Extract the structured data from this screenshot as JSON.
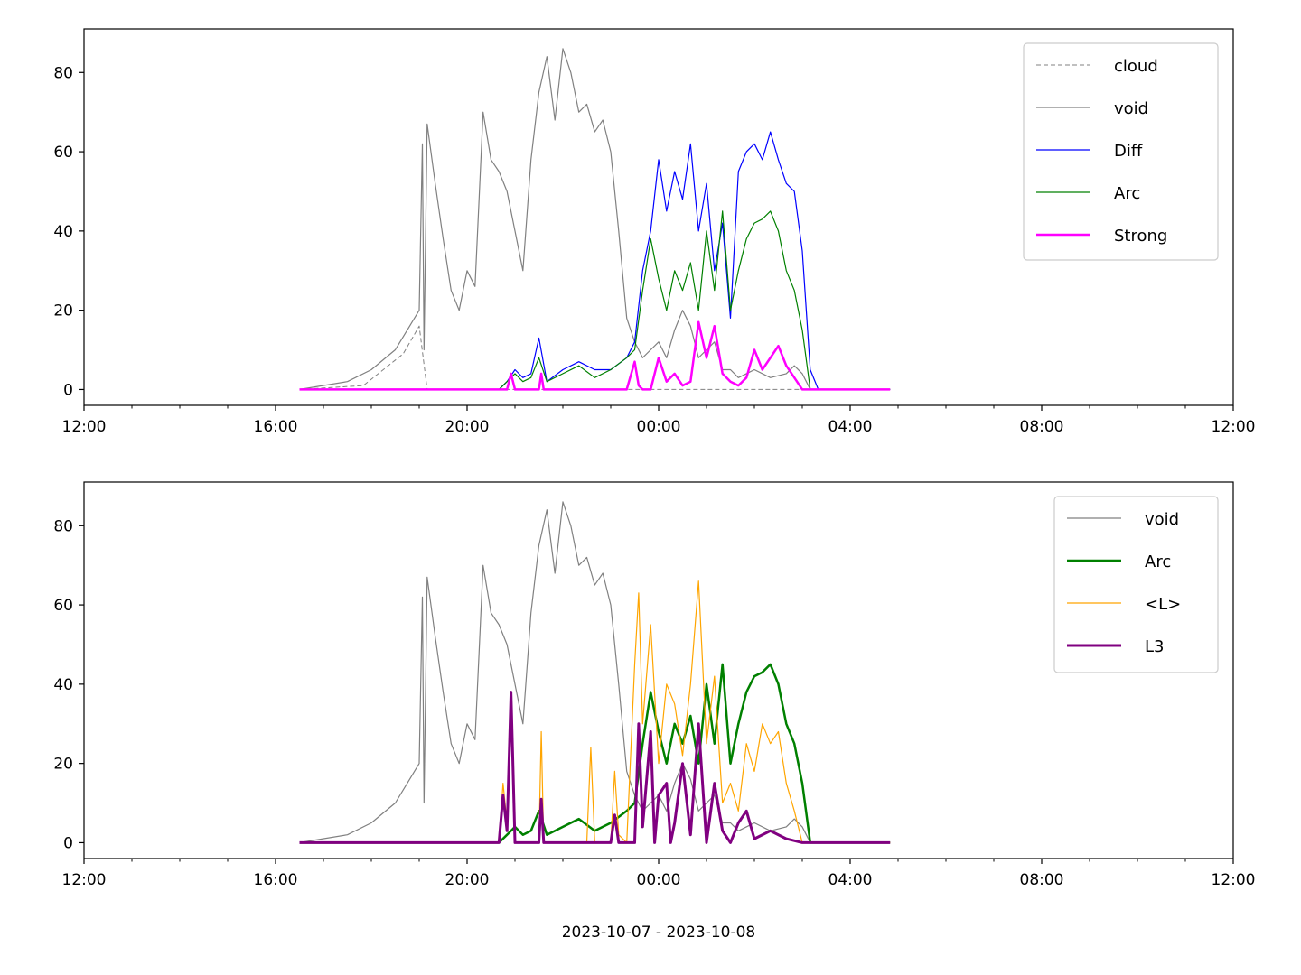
{
  "chart_data": [
    {
      "type": "line",
      "title": "",
      "xlabel": "",
      "ylabel": "",
      "x_axis_kind": "datetime",
      "xlim": [
        "2023-10-07 12:00",
        "2023-10-08 12:00"
      ],
      "ylim": [
        -4,
        91
      ],
      "x_tick_labels": [
        "12:00",
        "16:00",
        "20:00",
        "00:00",
        "04:00",
        "08:00",
        "12:00"
      ],
      "y_tick_labels": [
        "0",
        "20",
        "40",
        "60",
        "80"
      ],
      "y_ticks": [
        0,
        20,
        40,
        60,
        80
      ],
      "grid": false,
      "legend_position": "upper right",
      "series": [
        {
          "name": "cloud",
          "color": "#808080",
          "style": "dashed",
          "width": 1,
          "x": [
            "2023-10-07 16:30",
            "2023-10-07 17:50",
            "2023-10-07 18:40",
            "2023-10-07 19:00",
            "2023-10-07 19:10",
            "2023-10-07 20:00",
            "2023-10-08 03:00",
            "2023-10-08 04:50"
          ],
          "y": [
            0,
            1,
            9,
            16,
            0,
            0,
            0,
            0
          ]
        },
        {
          "name": "void",
          "color": "#808080",
          "style": "solid",
          "width": 1.2,
          "x": [
            "2023-10-07 16:30",
            "2023-10-07 17:30",
            "2023-10-07 18:00",
            "2023-10-07 18:30",
            "2023-10-07 18:45",
            "2023-10-07 19:00",
            "2023-10-07 19:04",
            "2023-10-07 19:06",
            "2023-10-07 19:10",
            "2023-10-07 19:20",
            "2023-10-07 19:30",
            "2023-10-07 19:40",
            "2023-10-07 19:50",
            "2023-10-07 20:00",
            "2023-10-07 20:10",
            "2023-10-07 20:20",
            "2023-10-07 20:30",
            "2023-10-07 20:40",
            "2023-10-07 20:50",
            "2023-10-07 21:00",
            "2023-10-07 21:10",
            "2023-10-07 21:20",
            "2023-10-07 21:30",
            "2023-10-07 21:40",
            "2023-10-07 21:50",
            "2023-10-07 22:00",
            "2023-10-07 22:10",
            "2023-10-07 22:20",
            "2023-10-07 22:30",
            "2023-10-07 22:40",
            "2023-10-07 22:50",
            "2023-10-07 23:00",
            "2023-10-07 23:10",
            "2023-10-07 23:20",
            "2023-10-07 23:30",
            "2023-10-07 23:40",
            "2023-10-07 23:50",
            "2023-10-08 00:00",
            "2023-10-08 00:10",
            "2023-10-08 00:20",
            "2023-10-08 00:30",
            "2023-10-08 00:40",
            "2023-10-08 00:50",
            "2023-10-08 01:00",
            "2023-10-08 01:10",
            "2023-10-08 01:20",
            "2023-10-08 01:30",
            "2023-10-08 01:40",
            "2023-10-08 01:50",
            "2023-10-08 02:00",
            "2023-10-08 02:20",
            "2023-10-08 02:40",
            "2023-10-08 02:50",
            "2023-10-08 03:00",
            "2023-10-08 03:10",
            "2023-10-08 03:30",
            "2023-10-08 04:50"
          ],
          "y": [
            0,
            2,
            5,
            10,
            15,
            20,
            62,
            10,
            67,
            52,
            38,
            25,
            20,
            30,
            26,
            70,
            58,
            55,
            50,
            40,
            30,
            58,
            75,
            84,
            68,
            86,
            80,
            70,
            72,
            65,
            68,
            60,
            40,
            18,
            12,
            8,
            10,
            12,
            8,
            15,
            20,
            16,
            8,
            10,
            12,
            5,
            5,
            3,
            4,
            5,
            3,
            4,
            6,
            4,
            0,
            0,
            0
          ]
        },
        {
          "name": "Diff",
          "color": "#0000ff",
          "style": "solid",
          "width": 1.2,
          "x": [
            "2023-10-07 16:30",
            "2023-10-07 20:40",
            "2023-10-07 20:50",
            "2023-10-07 21:00",
            "2023-10-07 21:10",
            "2023-10-07 21:20",
            "2023-10-07 21:30",
            "2023-10-07 21:40",
            "2023-10-07 22:00",
            "2023-10-07 22:20",
            "2023-10-07 22:40",
            "2023-10-07 23:00",
            "2023-10-07 23:20",
            "2023-10-07 23:30",
            "2023-10-07 23:40",
            "2023-10-07 23:50",
            "2023-10-08 00:00",
            "2023-10-08 00:10",
            "2023-10-08 00:20",
            "2023-10-08 00:30",
            "2023-10-08 00:40",
            "2023-10-08 00:50",
            "2023-10-08 01:00",
            "2023-10-08 01:10",
            "2023-10-08 01:20",
            "2023-10-08 01:30",
            "2023-10-08 01:40",
            "2023-10-08 01:50",
            "2023-10-08 02:00",
            "2023-10-08 02:10",
            "2023-10-08 02:20",
            "2023-10-08 02:30",
            "2023-10-08 02:40",
            "2023-10-08 02:50",
            "2023-10-08 03:00",
            "2023-10-08 03:10",
            "2023-10-08 03:20",
            "2023-10-08 04:50"
          ],
          "y": [
            0,
            0,
            2,
            5,
            3,
            4,
            13,
            2,
            5,
            7,
            5,
            5,
            8,
            12,
            30,
            40,
            58,
            45,
            55,
            48,
            62,
            40,
            52,
            30,
            42,
            18,
            55,
            60,
            62,
            58,
            65,
            58,
            52,
            50,
            35,
            5,
            0,
            0
          ]
        },
        {
          "name": "Arc",
          "color": "#008000",
          "style": "solid",
          "width": 1.2,
          "x": [
            "2023-10-07 16:30",
            "2023-10-07 20:40",
            "2023-10-07 20:50",
            "2023-10-07 21:00",
            "2023-10-07 21:10",
            "2023-10-07 21:20",
            "2023-10-07 21:30",
            "2023-10-07 21:40",
            "2023-10-07 22:00",
            "2023-10-07 22:20",
            "2023-10-07 22:40",
            "2023-10-07 23:00",
            "2023-10-07 23:20",
            "2023-10-07 23:30",
            "2023-10-07 23:40",
            "2023-10-07 23:50",
            "2023-10-08 00:00",
            "2023-10-08 00:10",
            "2023-10-08 00:20",
            "2023-10-08 00:30",
            "2023-10-08 00:40",
            "2023-10-08 00:50",
            "2023-10-08 01:00",
            "2023-10-08 01:10",
            "2023-10-08 01:20",
            "2023-10-08 01:30",
            "2023-10-08 01:40",
            "2023-10-08 01:50",
            "2023-10-08 02:00",
            "2023-10-08 02:10",
            "2023-10-08 02:20",
            "2023-10-08 02:30",
            "2023-10-08 02:40",
            "2023-10-08 02:50",
            "2023-10-08 03:00",
            "2023-10-08 03:10",
            "2023-10-08 03:20",
            "2023-10-08 04:50"
          ],
          "y": [
            0,
            0,
            2,
            4,
            2,
            3,
            8,
            2,
            4,
            6,
            3,
            5,
            8,
            10,
            25,
            38,
            28,
            20,
            30,
            25,
            32,
            20,
            40,
            25,
            45,
            20,
            30,
            38,
            42,
            43,
            45,
            40,
            30,
            25,
            15,
            0,
            0,
            0
          ]
        },
        {
          "name": "Strong",
          "color": "#ff00ff",
          "style": "solid",
          "width": 2.5,
          "x": [
            "2023-10-07 16:30",
            "2023-10-07 20:50",
            "2023-10-07 20:55",
            "2023-10-07 21:00",
            "2023-10-07 21:30",
            "2023-10-07 21:33",
            "2023-10-07 21:36",
            "2023-10-07 23:20",
            "2023-10-07 23:30",
            "2023-10-07 23:35",
            "2023-10-07 23:40",
            "2023-10-07 23:50",
            "2023-10-08 00:00",
            "2023-10-08 00:10",
            "2023-10-08 00:20",
            "2023-10-08 00:30",
            "2023-10-08 00:40",
            "2023-10-08 00:50",
            "2023-10-08 01:00",
            "2023-10-08 01:10",
            "2023-10-08 01:20",
            "2023-10-08 01:30",
            "2023-10-08 01:40",
            "2023-10-08 01:50",
            "2023-10-08 02:00",
            "2023-10-08 02:10",
            "2023-10-08 02:20",
            "2023-10-08 02:30",
            "2023-10-08 02:40",
            "2023-10-08 02:50",
            "2023-10-08 03:00",
            "2023-10-08 04:50"
          ],
          "y": [
            0,
            0,
            4,
            0,
            0,
            4,
            0,
            0,
            7,
            1,
            0,
            0,
            8,
            2,
            4,
            1,
            2,
            17,
            8,
            16,
            4,
            2,
            1,
            3,
            10,
            5,
            8,
            11,
            6,
            3,
            0,
            0
          ]
        }
      ]
    },
    {
      "type": "line",
      "title": "",
      "xlabel": "2023-10-07 - 2023-10-08",
      "ylabel": "",
      "x_axis_kind": "datetime",
      "xlim": [
        "2023-10-07 12:00",
        "2023-10-08 12:00"
      ],
      "ylim": [
        -4,
        91
      ],
      "x_tick_labels": [
        "12:00",
        "16:00",
        "20:00",
        "00:00",
        "04:00",
        "08:00",
        "12:00"
      ],
      "y_tick_labels": [
        "0",
        "20",
        "40",
        "60",
        "80"
      ],
      "y_ticks": [
        0,
        20,
        40,
        60,
        80
      ],
      "grid": false,
      "legend_position": "upper right",
      "series": [
        {
          "name": "void",
          "color": "#808080",
          "style": "solid",
          "width": 1.2,
          "x": [
            "2023-10-07 16:30",
            "2023-10-07 17:30",
            "2023-10-07 18:00",
            "2023-10-07 18:30",
            "2023-10-07 18:45",
            "2023-10-07 19:00",
            "2023-10-07 19:04",
            "2023-10-07 19:06",
            "2023-10-07 19:10",
            "2023-10-07 19:20",
            "2023-10-07 19:30",
            "2023-10-07 19:40",
            "2023-10-07 19:50",
            "2023-10-07 20:00",
            "2023-10-07 20:10",
            "2023-10-07 20:20",
            "2023-10-07 20:30",
            "2023-10-07 20:40",
            "2023-10-07 20:50",
            "2023-10-07 21:00",
            "2023-10-07 21:10",
            "2023-10-07 21:20",
            "2023-10-07 21:30",
            "2023-10-07 21:40",
            "2023-10-07 21:50",
            "2023-10-07 22:00",
            "2023-10-07 22:10",
            "2023-10-07 22:20",
            "2023-10-07 22:30",
            "2023-10-07 22:40",
            "2023-10-07 22:50",
            "2023-10-07 23:00",
            "2023-10-07 23:10",
            "2023-10-07 23:20",
            "2023-10-07 23:30",
            "2023-10-07 23:40",
            "2023-10-07 23:50",
            "2023-10-08 00:00",
            "2023-10-08 00:10",
            "2023-10-08 00:20",
            "2023-10-08 00:30",
            "2023-10-08 00:40",
            "2023-10-08 00:50",
            "2023-10-08 01:00",
            "2023-10-08 01:10",
            "2023-10-08 01:20",
            "2023-10-08 01:30",
            "2023-10-08 01:40",
            "2023-10-08 01:50",
            "2023-10-08 02:00",
            "2023-10-08 02:20",
            "2023-10-08 02:40",
            "2023-10-08 02:50",
            "2023-10-08 03:00",
            "2023-10-08 03:10",
            "2023-10-08 03:30",
            "2023-10-08 04:50"
          ],
          "y": [
            0,
            2,
            5,
            10,
            15,
            20,
            62,
            10,
            67,
            52,
            38,
            25,
            20,
            30,
            26,
            70,
            58,
            55,
            50,
            40,
            30,
            58,
            75,
            84,
            68,
            86,
            80,
            70,
            72,
            65,
            68,
            60,
            40,
            18,
            12,
            8,
            10,
            12,
            8,
            15,
            20,
            16,
            8,
            10,
            12,
            5,
            5,
            3,
            4,
            5,
            3,
            4,
            6,
            4,
            0,
            0,
            0
          ]
        },
        {
          "name": "Arc",
          "color": "#008000",
          "style": "solid",
          "width": 2.5,
          "x": [
            "2023-10-07 16:30",
            "2023-10-07 20:40",
            "2023-10-07 20:50",
            "2023-10-07 21:00",
            "2023-10-07 21:10",
            "2023-10-07 21:20",
            "2023-10-07 21:30",
            "2023-10-07 21:40",
            "2023-10-07 22:00",
            "2023-10-07 22:20",
            "2023-10-07 22:40",
            "2023-10-07 23:00",
            "2023-10-07 23:20",
            "2023-10-07 23:30",
            "2023-10-07 23:40",
            "2023-10-07 23:50",
            "2023-10-08 00:00",
            "2023-10-08 00:10",
            "2023-10-08 00:20",
            "2023-10-08 00:30",
            "2023-10-08 00:40",
            "2023-10-08 00:50",
            "2023-10-08 01:00",
            "2023-10-08 01:10",
            "2023-10-08 01:20",
            "2023-10-08 01:30",
            "2023-10-08 01:40",
            "2023-10-08 01:50",
            "2023-10-08 02:00",
            "2023-10-08 02:10",
            "2023-10-08 02:20",
            "2023-10-08 02:30",
            "2023-10-08 02:40",
            "2023-10-08 02:50",
            "2023-10-08 03:00",
            "2023-10-08 03:10",
            "2023-10-08 03:20",
            "2023-10-08 04:50"
          ],
          "y": [
            0,
            0,
            2,
            4,
            2,
            3,
            8,
            2,
            4,
            6,
            3,
            5,
            8,
            10,
            25,
            38,
            28,
            20,
            30,
            25,
            32,
            20,
            40,
            25,
            45,
            20,
            30,
            38,
            42,
            43,
            45,
            40,
            30,
            25,
            15,
            0,
            0,
            0
          ]
        },
        {
          "name": "<L>",
          "color": "#ffa500",
          "style": "solid",
          "width": 1.2,
          "x": [
            "2023-10-07 16:30",
            "2023-10-07 20:40",
            "2023-10-07 20:45",
            "2023-10-07 20:50",
            "2023-10-07 20:55",
            "2023-10-07 21:00",
            "2023-10-07 21:30",
            "2023-10-07 21:33",
            "2023-10-07 21:36",
            "2023-10-07 22:30",
            "2023-10-07 22:35",
            "2023-10-07 22:40",
            "2023-10-07 23:00",
            "2023-10-07 23:05",
            "2023-10-07 23:10",
            "2023-10-07 23:20",
            "2023-10-07 23:30",
            "2023-10-07 23:35",
            "2023-10-07 23:40",
            "2023-10-07 23:50",
            "2023-10-08 00:00",
            "2023-10-08 00:10",
            "2023-10-08 00:20",
            "2023-10-08 00:30",
            "2023-10-08 00:40",
            "2023-10-08 00:50",
            "2023-10-08 01:00",
            "2023-10-08 01:10",
            "2023-10-08 01:20",
            "2023-10-08 01:30",
            "2023-10-08 01:40",
            "2023-10-08 01:50",
            "2023-10-08 02:00",
            "2023-10-08 02:10",
            "2023-10-08 02:20",
            "2023-10-08 02:30",
            "2023-10-08 02:40",
            "2023-10-08 02:50",
            "2023-10-08 03:00",
            "2023-10-08 04:50"
          ],
          "y": [
            0,
            0,
            15,
            5,
            38,
            0,
            0,
            28,
            0,
            0,
            24,
            0,
            0,
            18,
            2,
            0,
            45,
            63,
            30,
            55,
            20,
            40,
            35,
            22,
            40,
            66,
            25,
            42,
            10,
            15,
            8,
            25,
            18,
            30,
            25,
            28,
            15,
            8,
            0,
            0
          ]
        },
        {
          "name": "L3",
          "color": "#800080",
          "style": "solid",
          "width": 3,
          "x": [
            "2023-10-07 16:30",
            "2023-10-07 20:40",
            "2023-10-07 20:45",
            "2023-10-07 20:50",
            "2023-10-07 20:55",
            "2023-10-07 21:00",
            "2023-10-07 21:30",
            "2023-10-07 21:33",
            "2023-10-07 21:36",
            "2023-10-07 23:00",
            "2023-10-07 23:05",
            "2023-10-07 23:10",
            "2023-10-07 23:30",
            "2023-10-07 23:35",
            "2023-10-07 23:40",
            "2023-10-07 23:50",
            "2023-10-07 23:55",
            "2023-10-08 00:00",
            "2023-10-08 00:10",
            "2023-10-08 00:15",
            "2023-10-08 00:20",
            "2023-10-08 00:30",
            "2023-10-08 00:40",
            "2023-10-08 00:50",
            "2023-10-08 01:00",
            "2023-10-08 01:10",
            "2023-10-08 01:20",
            "2023-10-08 01:30",
            "2023-10-08 01:40",
            "2023-10-08 01:50",
            "2023-10-08 02:00",
            "2023-10-08 02:20",
            "2023-10-08 02:40",
            "2023-10-08 03:00",
            "2023-10-08 04:50"
          ],
          "y": [
            0,
            0,
            12,
            3,
            38,
            0,
            0,
            11,
            0,
            0,
            7,
            0,
            0,
            30,
            4,
            28,
            0,
            12,
            15,
            0,
            5,
            20,
            2,
            30,
            0,
            15,
            3,
            0,
            5,
            8,
            1,
            3,
            1,
            0,
            0
          ]
        }
      ]
    }
  ]
}
